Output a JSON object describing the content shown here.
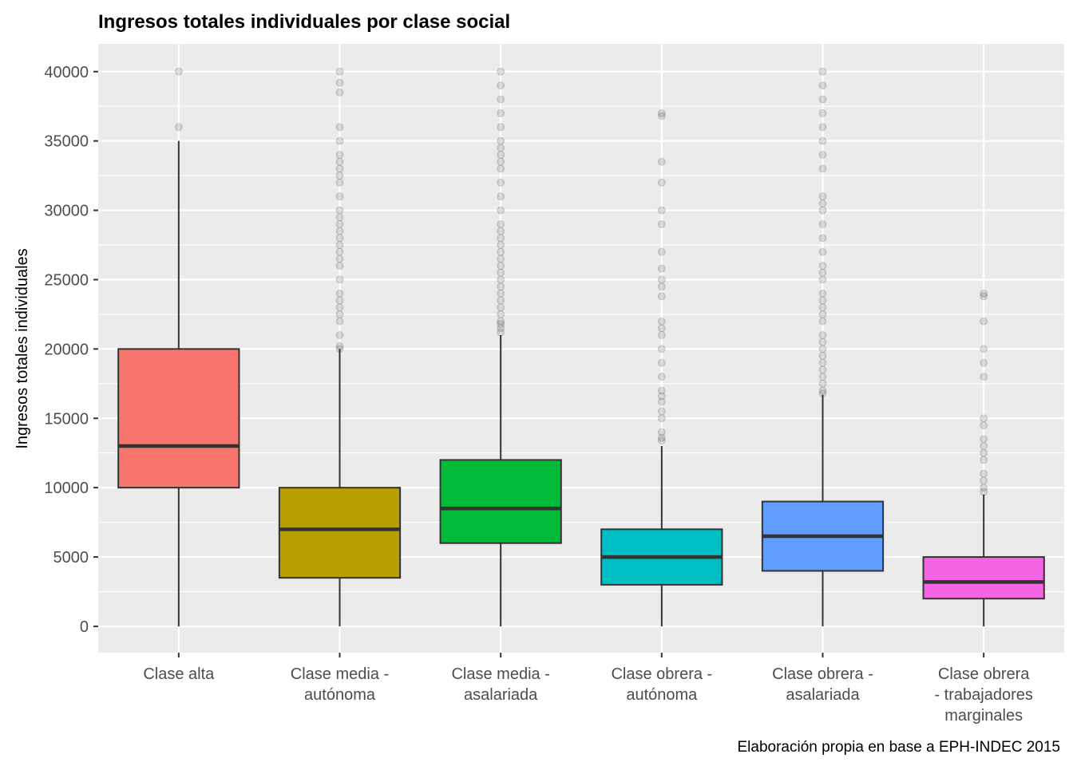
{
  "chart_data": {
    "type": "boxplot",
    "title": "Ingresos totales individuales por clase social",
    "xlabel": "",
    "ylabel": "Ingresos totales individuales",
    "caption": "Elaboración propia en base a EPH-INDEC 2015",
    "ylim": [
      -1900,
      42000
    ],
    "yticks": [
      0,
      5000,
      10000,
      15000,
      20000,
      25000,
      30000,
      35000,
      40000
    ],
    "grid": true,
    "legend": "none",
    "categories": [
      [
        "Clase alta"
      ],
      [
        "Clase media -",
        "autónoma"
      ],
      [
        "Clase media -",
        "asalariada"
      ],
      [
        "Clase obrera -",
        "autónoma"
      ],
      [
        "Clase obrera -",
        "asalariada"
      ],
      [
        "Clase obrera",
        "- trabajadores",
        "marginales"
      ]
    ],
    "boxes": [
      {
        "min": 0,
        "q1": 10000,
        "median": 13000,
        "q3": 20000,
        "max": 35000,
        "color": "#F8766D",
        "outliers": [
          36000,
          40000
        ]
      },
      {
        "min": 0,
        "q1": 3500,
        "median": 7000,
        "q3": 10000,
        "max": 20000,
        "color": "#B79F00",
        "outliers": [
          20000,
          20200,
          21000,
          22000,
          22500,
          23000,
          23500,
          24000,
          25000,
          26000,
          26500,
          27000,
          27500,
          28000,
          28500,
          29000,
          29500,
          30000,
          31000,
          32000,
          32500,
          33000,
          33500,
          34000,
          35000,
          36000,
          38500,
          39200,
          40000
        ]
      },
      {
        "min": 0,
        "q1": 6000,
        "median": 8500,
        "q3": 12000,
        "max": 21000,
        "color": "#00BA38",
        "outliers": [
          21200,
          21500,
          21800,
          22000,
          22500,
          23000,
          23500,
          24000,
          24500,
          25000,
          25500,
          26000,
          26500,
          27000,
          27500,
          28000,
          28500,
          29000,
          30000,
          31000,
          32000,
          33000,
          33500,
          34000,
          34500,
          35000,
          36000,
          37000,
          38000,
          39000,
          40000
        ]
      },
      {
        "min": 0,
        "q1": 3000,
        "median": 5000,
        "q3": 7000,
        "max": 13000,
        "color": "#00BFC4",
        "outliers": [
          13400,
          13600,
          14000,
          15000,
          15500,
          16200,
          16600,
          17000,
          18000,
          19000,
          20000,
          21000,
          21500,
          22000,
          23800,
          24500,
          25000,
          25800,
          27000,
          29000,
          30000,
          32000,
          33500,
          36800,
          37000
        ]
      },
      {
        "min": 0,
        "q1": 4000,
        "median": 6500,
        "q3": 9000,
        "max": 16700,
        "color": "#619CFF",
        "outliers": [
          16800,
          17000,
          17500,
          18000,
          18500,
          19000,
          19500,
          20000,
          20500,
          21000,
          22000,
          22500,
          23000,
          23500,
          24000,
          25000,
          25500,
          26000,
          27000,
          28000,
          29000,
          30000,
          30500,
          31000,
          33000,
          34000,
          35000,
          36000,
          37000,
          38000,
          39000,
          40000
        ]
      },
      {
        "min": 0,
        "q1": 2000,
        "median": 3200,
        "q3": 5000,
        "max": 9500,
        "color": "#F564E3",
        "outliers": [
          9700,
          10000,
          10500,
          11000,
          12000,
          12500,
          13000,
          13500,
          14500,
          15000,
          18000,
          19000,
          20000,
          22000,
          23800,
          24000
        ]
      }
    ]
  }
}
